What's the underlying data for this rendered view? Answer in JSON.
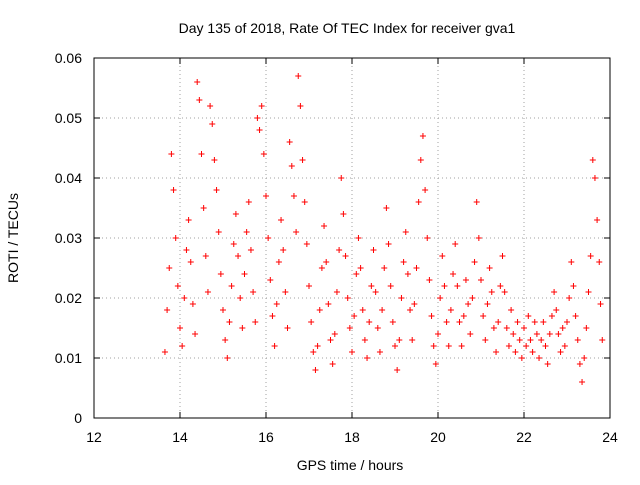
{
  "chart_data": {
    "type": "scatter",
    "title": "Day 135 of 2018, Rate Of TEC Index for receiver gva1",
    "xlabel": "GPS time / hours",
    "ylabel": "ROTI / TECUs",
    "xlim": [
      12,
      24
    ],
    "ylim": [
      0,
      0.06
    ],
    "x_ticks": [
      12,
      14,
      16,
      18,
      20,
      22,
      24
    ],
    "y_ticks": [
      0,
      0.01,
      0.02,
      0.03,
      0.04,
      0.05,
      0.06
    ],
    "x_tick_labels": [
      "12",
      "14",
      "16",
      "18",
      "20",
      "22",
      "24"
    ],
    "y_tick_labels": [
      "0",
      "0.01",
      "0.02",
      "0.03",
      "0.04",
      "0.05",
      "0.06"
    ],
    "grid": true,
    "marker": "+",
    "colors": {
      "points": "#ff0000",
      "grid": "#a0a0a0",
      "axes": "#000000"
    },
    "series": [
      {
        "points": [
          [
            13.65,
            0.011
          ],
          [
            13.7,
            0.018
          ],
          [
            13.75,
            0.025
          ],
          [
            13.8,
            0.044
          ],
          [
            13.85,
            0.038
          ],
          [
            13.9,
            0.03
          ],
          [
            13.95,
            0.022
          ],
          [
            14.0,
            0.015
          ],
          [
            14.05,
            0.012
          ],
          [
            14.1,
            0.02
          ],
          [
            14.15,
            0.028
          ],
          [
            14.2,
            0.033
          ],
          [
            14.25,
            0.026
          ],
          [
            14.3,
            0.019
          ],
          [
            14.35,
            0.014
          ],
          [
            14.4,
            0.056
          ],
          [
            14.45,
            0.053
          ],
          [
            14.5,
            0.044
          ],
          [
            14.55,
            0.035
          ],
          [
            14.6,
            0.027
          ],
          [
            14.65,
            0.021
          ],
          [
            14.7,
            0.052
          ],
          [
            14.75,
            0.049
          ],
          [
            14.8,
            0.043
          ],
          [
            14.85,
            0.038
          ],
          [
            14.9,
            0.031
          ],
          [
            14.95,
            0.024
          ],
          [
            15.0,
            0.018
          ],
          [
            15.05,
            0.013
          ],
          [
            15.1,
            0.01
          ],
          [
            15.15,
            0.016
          ],
          [
            15.2,
            0.022
          ],
          [
            15.25,
            0.029
          ],
          [
            15.3,
            0.034
          ],
          [
            15.35,
            0.027
          ],
          [
            15.4,
            0.02
          ],
          [
            15.45,
            0.015
          ],
          [
            15.5,
            0.024
          ],
          [
            15.55,
            0.031
          ],
          [
            15.6,
            0.036
          ],
          [
            15.65,
            0.028
          ],
          [
            15.7,
            0.021
          ],
          [
            15.75,
            0.016
          ],
          [
            15.8,
            0.05
          ],
          [
            15.85,
            0.048
          ],
          [
            15.9,
            0.052
          ],
          [
            15.95,
            0.044
          ],
          [
            16.0,
            0.037
          ],
          [
            16.05,
            0.03
          ],
          [
            16.1,
            0.023
          ],
          [
            16.15,
            0.017
          ],
          [
            16.2,
            0.012
          ],
          [
            16.25,
            0.019
          ],
          [
            16.3,
            0.026
          ],
          [
            16.35,
            0.033
          ],
          [
            16.4,
            0.028
          ],
          [
            16.45,
            0.021
          ],
          [
            16.5,
            0.015
          ],
          [
            16.55,
            0.046
          ],
          [
            16.6,
            0.042
          ],
          [
            16.65,
            0.037
          ],
          [
            16.7,
            0.031
          ],
          [
            16.75,
            0.057
          ],
          [
            16.8,
            0.052
          ],
          [
            16.85,
            0.043
          ],
          [
            16.9,
            0.036
          ],
          [
            16.95,
            0.029
          ],
          [
            17.0,
            0.022
          ],
          [
            17.05,
            0.016
          ],
          [
            17.1,
            0.011
          ],
          [
            17.15,
            0.008
          ],
          [
            17.2,
            0.012
          ],
          [
            17.25,
            0.018
          ],
          [
            17.3,
            0.025
          ],
          [
            17.35,
            0.032
          ],
          [
            17.4,
            0.026
          ],
          [
            17.45,
            0.019
          ],
          [
            17.5,
            0.013
          ],
          [
            17.55,
            0.009
          ],
          [
            17.6,
            0.014
          ],
          [
            17.65,
            0.021
          ],
          [
            17.7,
            0.028
          ],
          [
            17.75,
            0.04
          ],
          [
            17.8,
            0.034
          ],
          [
            17.85,
            0.027
          ],
          [
            17.9,
            0.02
          ],
          [
            17.95,
            0.015
          ],
          [
            18.0,
            0.011
          ],
          [
            18.05,
            0.017
          ],
          [
            18.1,
            0.024
          ],
          [
            18.15,
            0.03
          ],
          [
            18.2,
            0.025
          ],
          [
            18.25,
            0.018
          ],
          [
            18.3,
            0.013
          ],
          [
            18.35,
            0.01
          ],
          [
            18.4,
            0.016
          ],
          [
            18.45,
            0.022
          ],
          [
            18.5,
            0.028
          ],
          [
            18.55,
            0.021
          ],
          [
            18.6,
            0.015
          ],
          [
            18.65,
            0.011
          ],
          [
            18.7,
            0.018
          ],
          [
            18.75,
            0.025
          ],
          [
            18.8,
            0.035
          ],
          [
            18.85,
            0.029
          ],
          [
            18.9,
            0.022
          ],
          [
            18.95,
            0.016
          ],
          [
            19.0,
            0.012
          ],
          [
            19.05,
            0.008
          ],
          [
            19.1,
            0.013
          ],
          [
            19.15,
            0.02
          ],
          [
            19.2,
            0.026
          ],
          [
            19.25,
            0.031
          ],
          [
            19.3,
            0.024
          ],
          [
            19.35,
            0.018
          ],
          [
            19.4,
            0.013
          ],
          [
            19.45,
            0.019
          ],
          [
            19.5,
            0.025
          ],
          [
            19.55,
            0.036
          ],
          [
            19.6,
            0.043
          ],
          [
            19.65,
            0.047
          ],
          [
            19.7,
            0.038
          ],
          [
            19.75,
            0.03
          ],
          [
            19.8,
            0.023
          ],
          [
            19.85,
            0.017
          ],
          [
            19.9,
            0.012
          ],
          [
            19.95,
            0.009
          ],
          [
            20.0,
            0.014
          ],
          [
            20.05,
            0.02
          ],
          [
            20.1,
            0.027
          ],
          [
            20.15,
            0.022
          ],
          [
            20.2,
            0.016
          ],
          [
            20.25,
            0.012
          ],
          [
            20.3,
            0.018
          ],
          [
            20.35,
            0.024
          ],
          [
            20.4,
            0.029
          ],
          [
            20.45,
            0.022
          ],
          [
            20.5,
            0.016
          ],
          [
            20.55,
            0.012
          ],
          [
            20.6,
            0.017
          ],
          [
            20.65,
            0.023
          ],
          [
            20.7,
            0.019
          ],
          [
            20.75,
            0.014
          ],
          [
            20.8,
            0.02
          ],
          [
            20.85,
            0.026
          ],
          [
            20.9,
            0.036
          ],
          [
            20.95,
            0.03
          ],
          [
            21.0,
            0.023
          ],
          [
            21.05,
            0.017
          ],
          [
            21.1,
            0.013
          ],
          [
            21.15,
            0.019
          ],
          [
            21.2,
            0.025
          ],
          [
            21.25,
            0.021
          ],
          [
            21.3,
            0.015
          ],
          [
            21.35,
            0.011
          ],
          [
            21.4,
            0.016
          ],
          [
            21.45,
            0.022
          ],
          [
            21.5,
            0.027
          ],
          [
            21.55,
            0.021
          ],
          [
            21.6,
            0.015
          ],
          [
            21.65,
            0.012
          ],
          [
            21.7,
            0.018
          ],
          [
            21.75,
            0.014
          ],
          [
            21.8,
            0.011
          ],
          [
            21.85,
            0.016
          ],
          [
            21.9,
            0.013
          ],
          [
            21.95,
            0.01
          ],
          [
            22.0,
            0.015
          ],
          [
            22.05,
            0.012
          ],
          [
            22.1,
            0.017
          ],
          [
            22.15,
            0.013
          ],
          [
            22.2,
            0.011
          ],
          [
            22.25,
            0.016
          ],
          [
            22.3,
            0.014
          ],
          [
            22.35,
            0.01
          ],
          [
            22.4,
            0.013
          ],
          [
            22.45,
            0.016
          ],
          [
            22.5,
            0.012
          ],
          [
            22.55,
            0.009
          ],
          [
            22.6,
            0.014
          ],
          [
            22.65,
            0.017
          ],
          [
            22.7,
            0.021
          ],
          [
            22.75,
            0.018
          ],
          [
            22.8,
            0.014
          ],
          [
            22.85,
            0.011
          ],
          [
            22.9,
            0.015
          ],
          [
            22.95,
            0.012
          ],
          [
            23.0,
            0.016
          ],
          [
            23.05,
            0.02
          ],
          [
            23.1,
            0.026
          ],
          [
            23.15,
            0.022
          ],
          [
            23.2,
            0.017
          ],
          [
            23.25,
            0.013
          ],
          [
            23.3,
            0.009
          ],
          [
            23.35,
            0.006
          ],
          [
            23.4,
            0.01
          ],
          [
            23.45,
            0.015
          ],
          [
            23.5,
            0.021
          ],
          [
            23.55,
            0.027
          ],
          [
            23.6,
            0.043
          ],
          [
            23.65,
            0.04
          ],
          [
            23.7,
            0.033
          ],
          [
            23.75,
            0.026
          ],
          [
            23.78,
            0.019
          ],
          [
            23.82,
            0.013
          ]
        ]
      }
    ]
  }
}
